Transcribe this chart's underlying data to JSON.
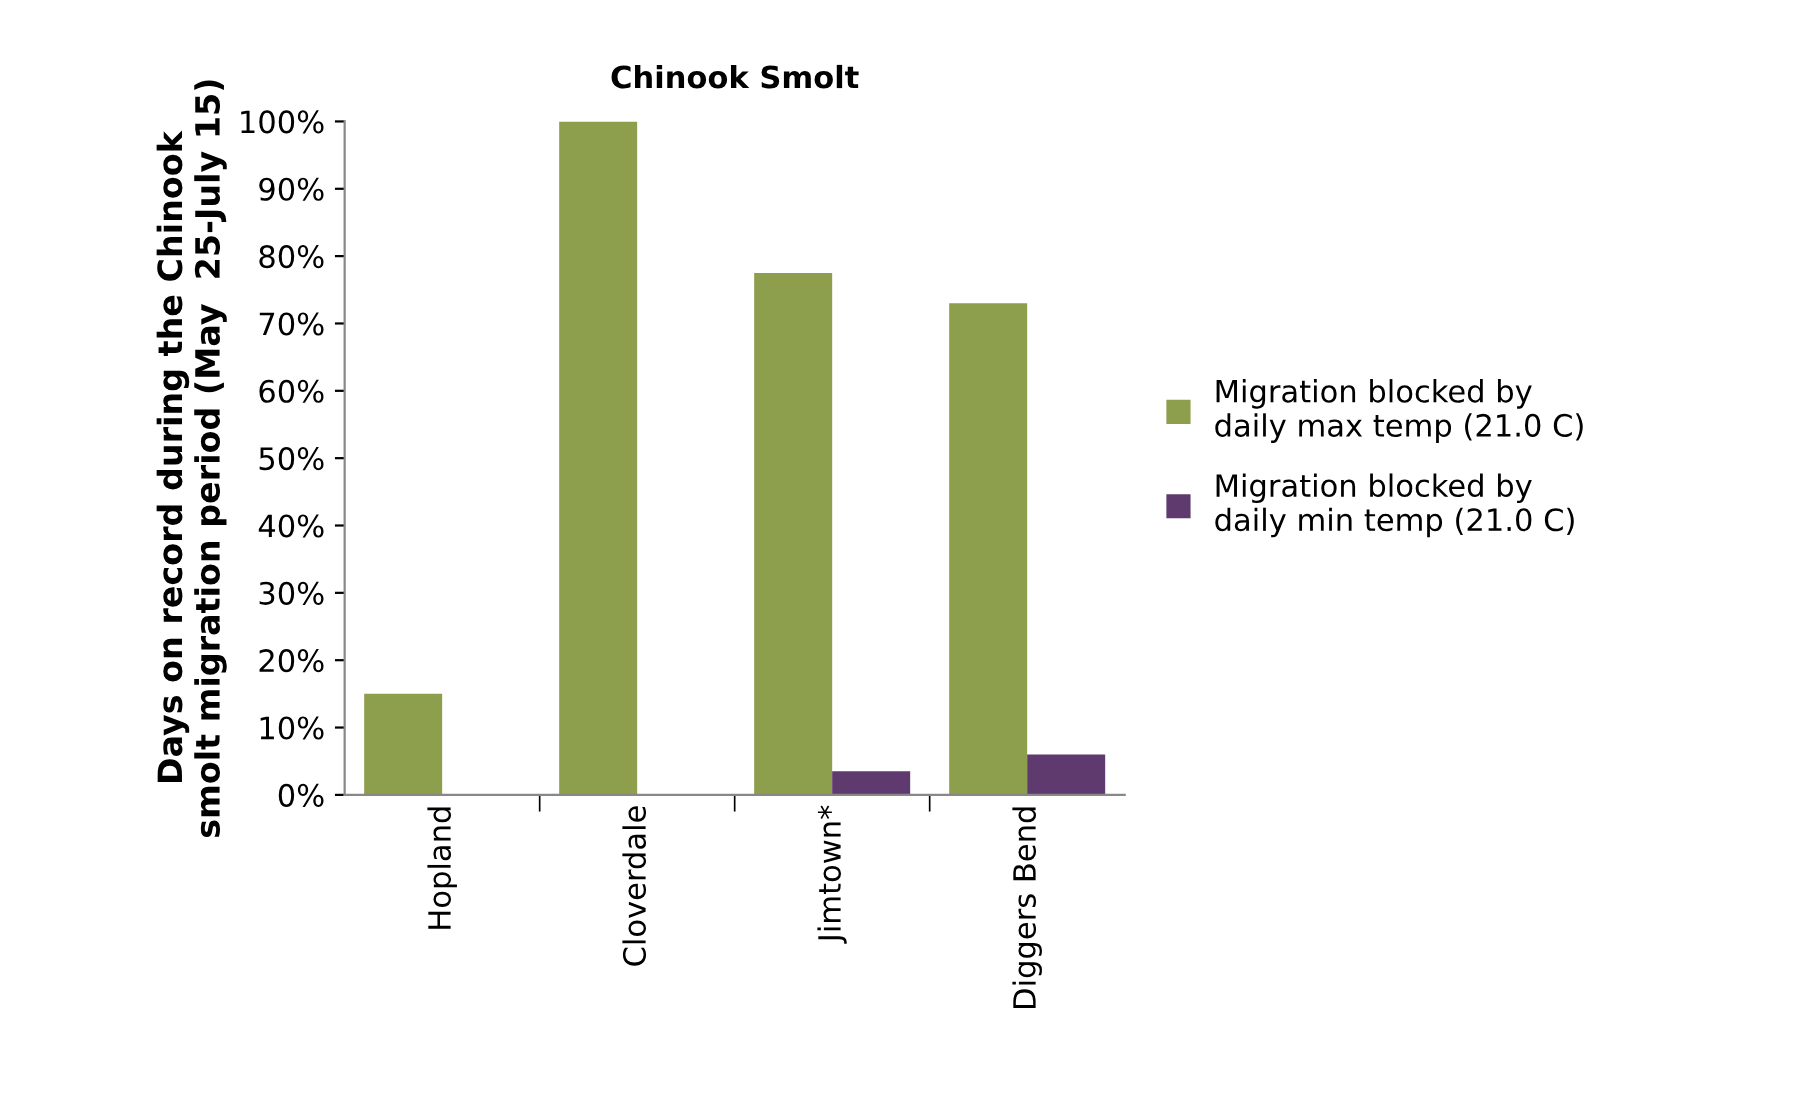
{
  "chart_data": {
    "type": "bar",
    "title": "Chinook Smolt",
    "ylabel": "Days on record during the Chinook\nsmolt migration period (May  25-July 15)",
    "categories": [
      "Hopland",
      "Cloverdale",
      "Jimtown*",
      "Diggers Bend"
    ],
    "series": [
      {
        "name": "Migration blocked by\ndaily max temp (21.0 C)",
        "color": "#8d9e4c",
        "values": [
          15,
          100,
          77.5,
          73
        ]
      },
      {
        "name": "Migration blocked by\ndaily min temp (21.0 C)",
        "color": "#5e3a6e",
        "values": [
          0,
          0,
          3.5,
          6
        ]
      }
    ],
    "ylim": [
      0,
      100
    ],
    "yticks": [
      {
        "value": 0,
        "label": "0%"
      },
      {
        "value": 10,
        "label": "10%"
      },
      {
        "value": 20,
        "label": "20%"
      },
      {
        "value": 30,
        "label": "30%"
      },
      {
        "value": 40,
        "label": "40%"
      },
      {
        "value": 50,
        "label": "50%"
      },
      {
        "value": 60,
        "label": "60%"
      },
      {
        "value": 70,
        "label": "70%"
      },
      {
        "value": 80,
        "label": "80%"
      },
      {
        "value": 90,
        "label": "90%"
      },
      {
        "value": 100,
        "label": "100%"
      }
    ],
    "grid": false,
    "legend": "right"
  }
}
